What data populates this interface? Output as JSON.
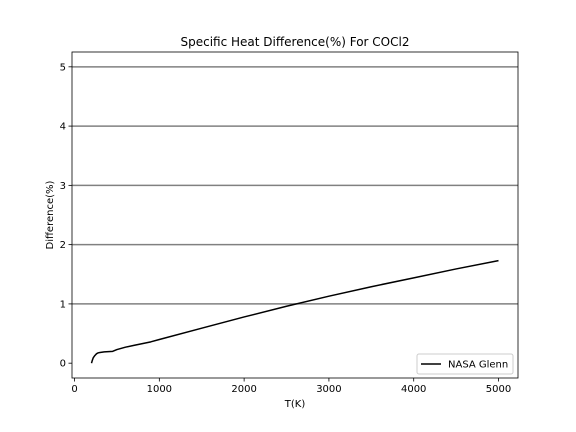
{
  "chart_data": {
    "type": "line",
    "title": "Specific Heat Difference(%) For COCl2",
    "xlabel": "T(K)",
    "ylabel": "Difference(%)",
    "xlim": [
      -30,
      5230
    ],
    "ylim": [
      -0.25,
      5.25
    ],
    "xticks": [
      0,
      1000,
      2000,
      3000,
      4000,
      5000
    ],
    "yticks": [
      0,
      1,
      2,
      3,
      4,
      5
    ],
    "xtick_labels": [
      "0",
      "1000",
      "2000",
      "3000",
      "4000",
      "5000"
    ],
    "ytick_labels": [
      "0",
      "1",
      "2",
      "3",
      "4",
      "5"
    ],
    "hlines": [
      1,
      2,
      3,
      4,
      5
    ],
    "grid": false,
    "legend_position": "lower-right",
    "colors": {
      "line": "#000000",
      "hline": "#808080",
      "axes": "#000000"
    },
    "series": [
      {
        "name": "NASA Glenn",
        "x": [
          200,
          210,
          220,
          240,
          260,
          280,
          300,
          350,
          400,
          450,
          500,
          600,
          700,
          800,
          900,
          1000,
          1500,
          2000,
          2500,
          3000,
          3500,
          4000,
          4500,
          5000
        ],
        "y": [
          0.0,
          0.05,
          0.09,
          0.13,
          0.16,
          0.175,
          0.18,
          0.19,
          0.195,
          0.2,
          0.23,
          0.27,
          0.3,
          0.33,
          0.36,
          0.4,
          0.59,
          0.78,
          0.96,
          1.13,
          1.29,
          1.44,
          1.59,
          1.73
        ]
      }
    ]
  }
}
